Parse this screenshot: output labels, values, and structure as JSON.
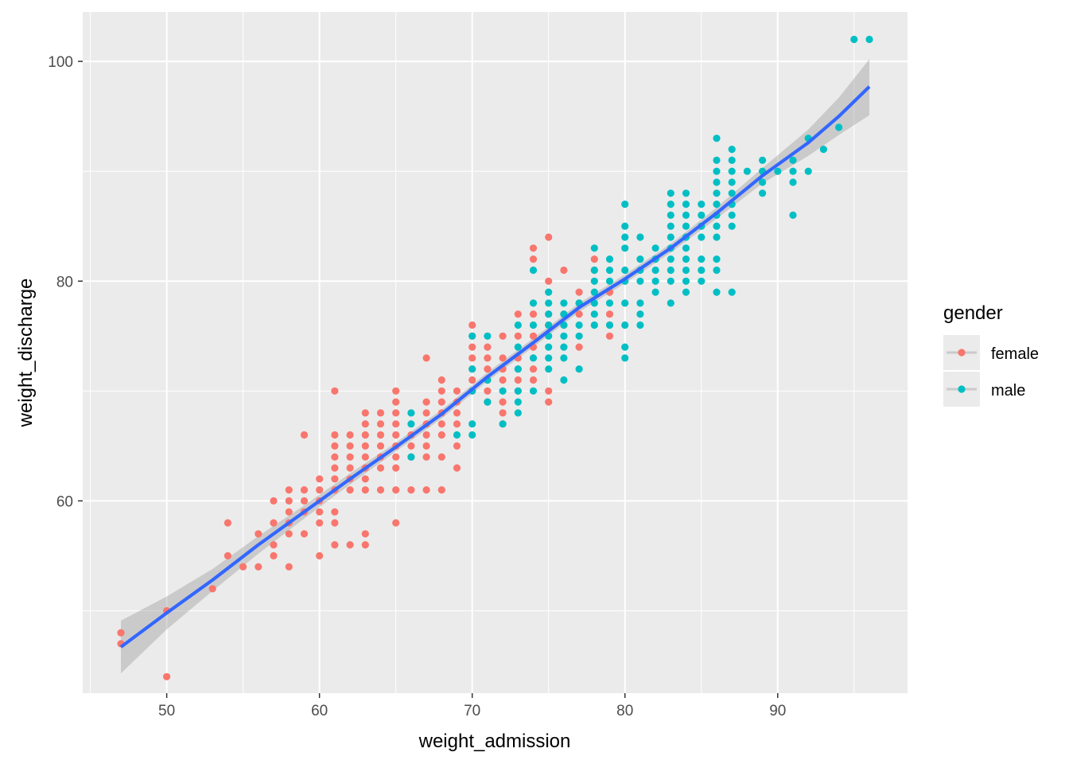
{
  "chart_data": {
    "type": "scatter",
    "title": "",
    "xlabel": "weight_admission",
    "ylabel": "weight_discharge",
    "xlim": [
      44.5,
      98.5
    ],
    "ylim": [
      42.5,
      104.5
    ],
    "x_ticks": [
      50,
      60,
      70,
      80,
      90
    ],
    "x_tick_labels": [
      "50",
      "60",
      "70",
      "80",
      "90"
    ],
    "y_ticks": [
      60,
      80,
      100
    ],
    "y_tick_labels": [
      "60",
      "80",
      "100"
    ],
    "grid": true,
    "legend": {
      "title": "gender",
      "position": "right",
      "entries": [
        {
          "label": "female",
          "color": "#F8766D"
        },
        {
          "label": "male",
          "color": "#00BFC4"
        }
      ]
    },
    "series": [
      {
        "name": "female",
        "color": "#F8766D",
        "points": [
          [
            47,
            47
          ],
          [
            47,
            48
          ],
          [
            50,
            50
          ],
          [
            50,
            44
          ],
          [
            53,
            52
          ],
          [
            54,
            55
          ],
          [
            54,
            58
          ],
          [
            55,
            54
          ],
          [
            56,
            54
          ],
          [
            56,
            57
          ],
          [
            57,
            55
          ],
          [
            57,
            56
          ],
          [
            57,
            58
          ],
          [
            57,
            60
          ],
          [
            58,
            54
          ],
          [
            58,
            57
          ],
          [
            58,
            58
          ],
          [
            58,
            59
          ],
          [
            58,
            60
          ],
          [
            58,
            61
          ],
          [
            59,
            57
          ],
          [
            59,
            59
          ],
          [
            59,
            60
          ],
          [
            59,
            61
          ],
          [
            59,
            66
          ],
          [
            60,
            55
          ],
          [
            60,
            58
          ],
          [
            60,
            59
          ],
          [
            60,
            60
          ],
          [
            60,
            61
          ],
          [
            60,
            62
          ],
          [
            61,
            56
          ],
          [
            61,
            58
          ],
          [
            61,
            59
          ],
          [
            61,
            61
          ],
          [
            61,
            62
          ],
          [
            61,
            63
          ],
          [
            61,
            64
          ],
          [
            61,
            65
          ],
          [
            61,
            66
          ],
          [
            61,
            70
          ],
          [
            62,
            56
          ],
          [
            62,
            61
          ],
          [
            62,
            62
          ],
          [
            62,
            63
          ],
          [
            62,
            64
          ],
          [
            62,
            65
          ],
          [
            62,
            66
          ],
          [
            63,
            56
          ],
          [
            63,
            57
          ],
          [
            63,
            61
          ],
          [
            63,
            62
          ],
          [
            63,
            63
          ],
          [
            63,
            64
          ],
          [
            63,
            65
          ],
          [
            63,
            66
          ],
          [
            63,
            67
          ],
          [
            63,
            68
          ],
          [
            64,
            61
          ],
          [
            64,
            63
          ],
          [
            64,
            64
          ],
          [
            64,
            65
          ],
          [
            64,
            66
          ],
          [
            64,
            67
          ],
          [
            64,
            68
          ],
          [
            65,
            58
          ],
          [
            65,
            61
          ],
          [
            65,
            63
          ],
          [
            65,
            64
          ],
          [
            65,
            65
          ],
          [
            65,
            66
          ],
          [
            65,
            67
          ],
          [
            65,
            68
          ],
          [
            65,
            69
          ],
          [
            65,
            70
          ],
          [
            66,
            61
          ],
          [
            66,
            64
          ],
          [
            66,
            65
          ],
          [
            66,
            66
          ],
          [
            67,
            61
          ],
          [
            67,
            64
          ],
          [
            67,
            65
          ],
          [
            67,
            66
          ],
          [
            67,
            67
          ],
          [
            67,
            68
          ],
          [
            67,
            69
          ],
          [
            67,
            73
          ],
          [
            68,
            61
          ],
          [
            68,
            64
          ],
          [
            68,
            66
          ],
          [
            68,
            67
          ],
          [
            68,
            68
          ],
          [
            68,
            69
          ],
          [
            68,
            70
          ],
          [
            68,
            71
          ],
          [
            69,
            63
          ],
          [
            69,
            65
          ],
          [
            69,
            67
          ],
          [
            69,
            68
          ],
          [
            69,
            69
          ],
          [
            69,
            70
          ],
          [
            70,
            70
          ],
          [
            70,
            71
          ],
          [
            70,
            72
          ],
          [
            70,
            73
          ],
          [
            70,
            74
          ],
          [
            70,
            75
          ],
          [
            70,
            76
          ],
          [
            71,
            69
          ],
          [
            71,
            70
          ],
          [
            71,
            71
          ],
          [
            71,
            72
          ],
          [
            71,
            73
          ],
          [
            71,
            74
          ],
          [
            72,
            67
          ],
          [
            72,
            68
          ],
          [
            72,
            69
          ],
          [
            72,
            71
          ],
          [
            72,
            72
          ],
          [
            72,
            73
          ],
          [
            72,
            75
          ],
          [
            73,
            70
          ],
          [
            73,
            71
          ],
          [
            73,
            72
          ],
          [
            73,
            73
          ],
          [
            73,
            75
          ],
          [
            73,
            77
          ],
          [
            74,
            71
          ],
          [
            74,
            72
          ],
          [
            74,
            74
          ],
          [
            74,
            75
          ],
          [
            74,
            77
          ],
          [
            74,
            82
          ],
          [
            74,
            83
          ],
          [
            75,
            69
          ],
          [
            75,
            70
          ],
          [
            75,
            76
          ],
          [
            75,
            77
          ],
          [
            75,
            80
          ],
          [
            75,
            84
          ],
          [
            76,
            76
          ],
          [
            76,
            77
          ],
          [
            76,
            81
          ],
          [
            77,
            74
          ],
          [
            77,
            77
          ],
          [
            77,
            78
          ],
          [
            77,
            79
          ],
          [
            78,
            81
          ],
          [
            78,
            82
          ],
          [
            79,
            75
          ],
          [
            79,
            76
          ],
          [
            79,
            77
          ],
          [
            79,
            79
          ]
        ]
      },
      {
        "name": "male",
        "color": "#00BFC4",
        "points": [
          [
            66,
            64
          ],
          [
            66,
            67
          ],
          [
            66,
            68
          ],
          [
            69,
            66
          ],
          [
            70,
            66
          ],
          [
            70,
            67
          ],
          [
            70,
            70
          ],
          [
            70,
            72
          ],
          [
            70,
            75
          ],
          [
            71,
            69
          ],
          [
            71,
            71
          ],
          [
            71,
            75
          ],
          [
            72,
            67
          ],
          [
            72,
            70
          ],
          [
            73,
            68
          ],
          [
            73,
            69
          ],
          [
            73,
            70
          ],
          [
            73,
            72
          ],
          [
            73,
            74
          ],
          [
            73,
            76
          ],
          [
            74,
            70
          ],
          [
            74,
            73
          ],
          [
            74,
            76
          ],
          [
            74,
            78
          ],
          [
            74,
            81
          ],
          [
            75,
            72
          ],
          [
            75,
            73
          ],
          [
            75,
            74
          ],
          [
            75,
            75
          ],
          [
            75,
            76
          ],
          [
            75,
            77
          ],
          [
            75,
            78
          ],
          [
            75,
            79
          ],
          [
            76,
            71
          ],
          [
            76,
            73
          ],
          [
            76,
            74
          ],
          [
            76,
            75
          ],
          [
            76,
            76
          ],
          [
            76,
            77
          ],
          [
            76,
            78
          ],
          [
            77,
            72
          ],
          [
            77,
            75
          ],
          [
            77,
            76
          ],
          [
            77,
            78
          ],
          [
            78,
            76
          ],
          [
            78,
            77
          ],
          [
            78,
            78
          ],
          [
            78,
            79
          ],
          [
            78,
            80
          ],
          [
            78,
            81
          ],
          [
            78,
            83
          ],
          [
            79,
            76
          ],
          [
            79,
            78
          ],
          [
            79,
            80
          ],
          [
            79,
            81
          ],
          [
            79,
            82
          ],
          [
            80,
            73
          ],
          [
            80,
            74
          ],
          [
            80,
            76
          ],
          [
            80,
            78
          ],
          [
            80,
            80
          ],
          [
            80,
            81
          ],
          [
            80,
            83
          ],
          [
            80,
            84
          ],
          [
            80,
            85
          ],
          [
            80,
            87
          ],
          [
            81,
            76
          ],
          [
            81,
            77
          ],
          [
            81,
            78
          ],
          [
            81,
            80
          ],
          [
            81,
            81
          ],
          [
            81,
            82
          ],
          [
            81,
            84
          ],
          [
            82,
            79
          ],
          [
            82,
            80
          ],
          [
            82,
            81
          ],
          [
            82,
            82
          ],
          [
            82,
            83
          ],
          [
            83,
            78
          ],
          [
            83,
            80
          ],
          [
            83,
            81
          ],
          [
            83,
            82
          ],
          [
            83,
            83
          ],
          [
            83,
            84
          ],
          [
            83,
            85
          ],
          [
            83,
            86
          ],
          [
            83,
            87
          ],
          [
            83,
            88
          ],
          [
            84,
            79
          ],
          [
            84,
            80
          ],
          [
            84,
            81
          ],
          [
            84,
            82
          ],
          [
            84,
            83
          ],
          [
            84,
            84
          ],
          [
            84,
            85
          ],
          [
            84,
            86
          ],
          [
            84,
            87
          ],
          [
            84,
            88
          ],
          [
            85,
            80
          ],
          [
            85,
            81
          ],
          [
            85,
            82
          ],
          [
            85,
            84
          ],
          [
            85,
            85
          ],
          [
            85,
            86
          ],
          [
            85,
            87
          ],
          [
            86,
            79
          ],
          [
            86,
            81
          ],
          [
            86,
            82
          ],
          [
            86,
            84
          ],
          [
            86,
            85
          ],
          [
            86,
            86
          ],
          [
            86,
            87
          ],
          [
            86,
            88
          ],
          [
            86,
            89
          ],
          [
            86,
            90
          ],
          [
            86,
            91
          ],
          [
            86,
            93
          ],
          [
            87,
            79
          ],
          [
            87,
            85
          ],
          [
            87,
            86
          ],
          [
            87,
            87
          ],
          [
            87,
            88
          ],
          [
            87,
            89
          ],
          [
            87,
            90
          ],
          [
            87,
            91
          ],
          [
            87,
            92
          ],
          [
            88,
            90
          ],
          [
            89,
            88
          ],
          [
            89,
            89
          ],
          [
            89,
            90
          ],
          [
            89,
            91
          ],
          [
            90,
            90
          ],
          [
            91,
            86
          ],
          [
            91,
            89
          ],
          [
            91,
            90
          ],
          [
            91,
            91
          ],
          [
            92,
            90
          ],
          [
            92,
            93
          ],
          [
            93,
            92
          ],
          [
            94,
            94
          ],
          [
            95,
            102
          ],
          [
            96,
            102
          ]
        ]
      }
    ],
    "smooth": {
      "method": "loess",
      "color": "#3366FF",
      "ribbon_color": "#999999",
      "points": [
        {
          "x": 47,
          "y": 46.7,
          "lo": 44.3,
          "hi": 49.1
        },
        {
          "x": 50,
          "y": 49.8,
          "lo": 48.3,
          "hi": 51.3
        },
        {
          "x": 53,
          "y": 52.8,
          "lo": 51.8,
          "hi": 53.8
        },
        {
          "x": 56,
          "y": 56.0,
          "lo": 55.2,
          "hi": 56.8
        },
        {
          "x": 59,
          "y": 59.0,
          "lo": 58.4,
          "hi": 59.6
        },
        {
          "x": 62,
          "y": 62.0,
          "lo": 61.5,
          "hi": 62.5
        },
        {
          "x": 65,
          "y": 64.9,
          "lo": 64.5,
          "hi": 65.3
        },
        {
          "x": 68,
          "y": 67.9,
          "lo": 67.5,
          "hi": 68.3
        },
        {
          "x": 71,
          "y": 71.3,
          "lo": 70.9,
          "hi": 71.7
        },
        {
          "x": 74,
          "y": 74.4,
          "lo": 74.0,
          "hi": 74.8
        },
        {
          "x": 77,
          "y": 77.6,
          "lo": 77.2,
          "hi": 78.0
        },
        {
          "x": 80,
          "y": 80.2,
          "lo": 79.8,
          "hi": 80.6
        },
        {
          "x": 83,
          "y": 83.0,
          "lo": 82.6,
          "hi": 83.4
        },
        {
          "x": 86,
          "y": 86.2,
          "lo": 85.7,
          "hi": 86.7
        },
        {
          "x": 89,
          "y": 89.6,
          "lo": 88.9,
          "hi": 90.3
        },
        {
          "x": 92,
          "y": 92.6,
          "lo": 91.4,
          "hi": 93.8
        },
        {
          "x": 94,
          "y": 95.0,
          "lo": 93.3,
          "hi": 96.7
        },
        {
          "x": 96,
          "y": 97.7,
          "lo": 95.1,
          "hi": 100.2
        }
      ]
    }
  }
}
